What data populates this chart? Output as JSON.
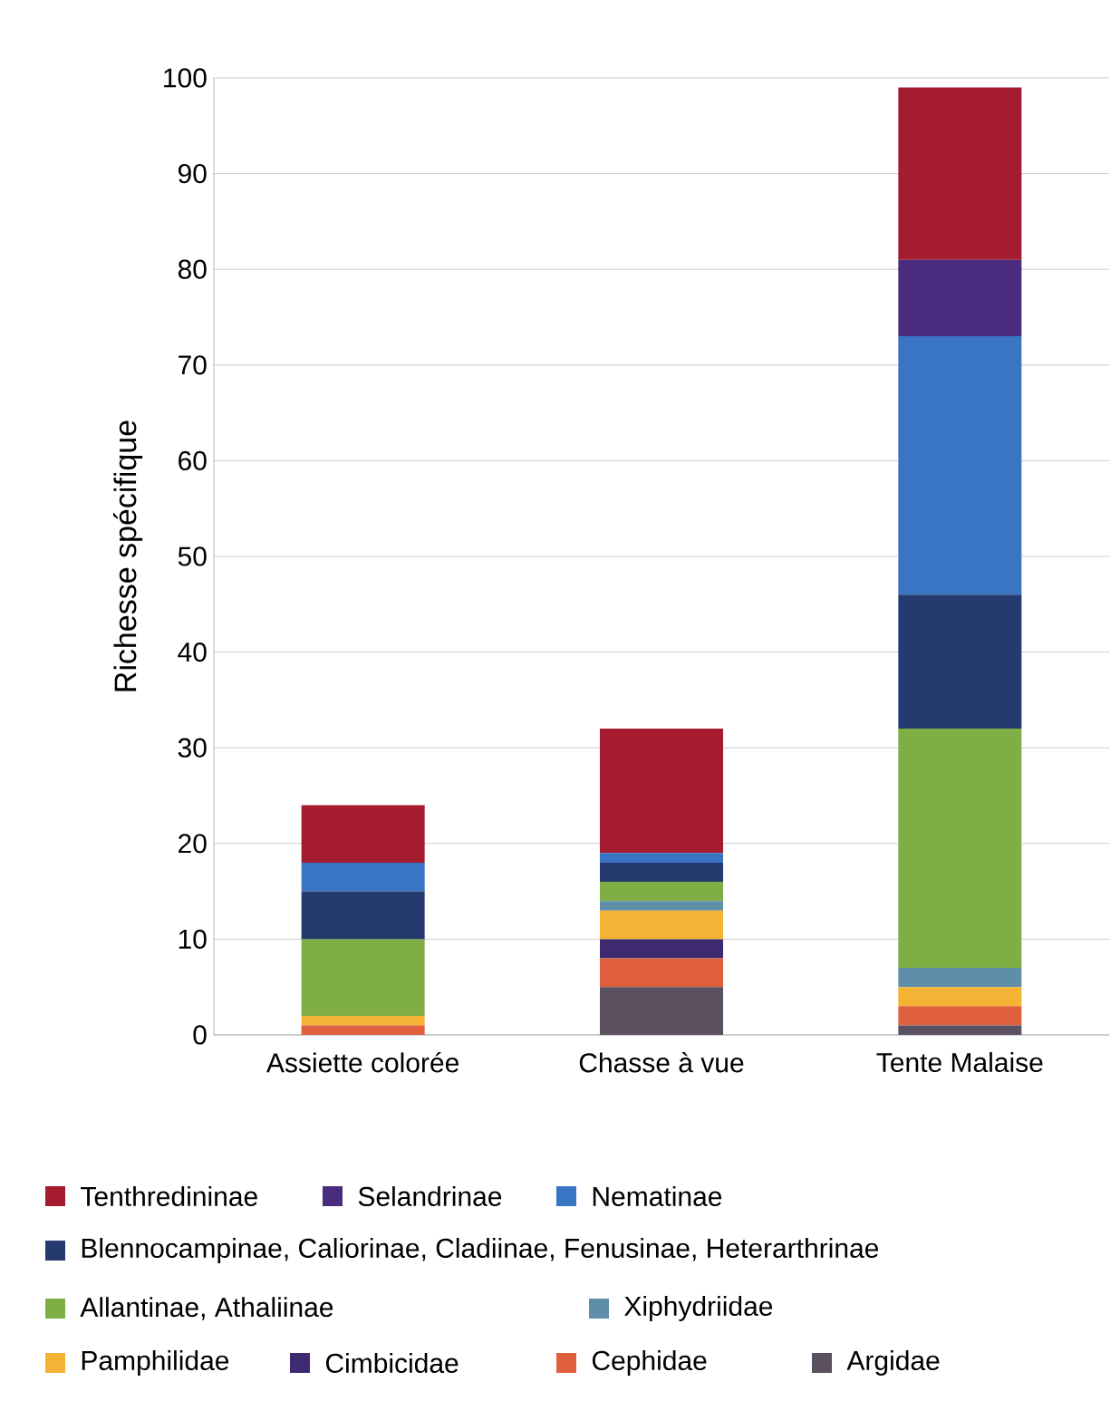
{
  "chart_data": {
    "type": "bar",
    "stacked": true,
    "ylabel": "Richesse spécifique",
    "categories": [
      "Assiette colorée",
      "Chasse à vue",
      "Tente Malaise"
    ],
    "ylim": [
      0,
      100
    ],
    "yticks": [
      0,
      10,
      20,
      30,
      40,
      50,
      60,
      70,
      80,
      90,
      100
    ],
    "grid": "y",
    "legend": "bottom",
    "series": [
      {
        "name": "Argidae",
        "color": "#5a5060",
        "values": [
          0,
          5,
          1
        ]
      },
      {
        "name": "Cephidae",
        "color": "#e0603e",
        "values": [
          1,
          3,
          2
        ]
      },
      {
        "name": "Cimbicidae",
        "color": "#3d2a70",
        "values": [
          0,
          2,
          0
        ]
      },
      {
        "name": "Pamphilidae",
        "color": "#f5b335",
        "values": [
          1,
          3,
          2
        ]
      },
      {
        "name": "Xiphydriidae",
        "color": "#5f8ea8",
        "values": [
          0,
          1,
          2
        ]
      },
      {
        "name": "Allantinae, Athaliinae",
        "color": "#7fae45",
        "values": [
          8,
          2,
          25
        ]
      },
      {
        "name": "Blennocampinae, Caliorinae, Cladiinae, Fenusinae, Heterarthrinae",
        "color": "#253a6e",
        "values": [
          5,
          2,
          14
        ]
      },
      {
        "name": "Nematinae",
        "color": "#3a75c4",
        "values": [
          3,
          1,
          27
        ]
      },
      {
        "name": "Selandrinae",
        "color": "#4a2c7e",
        "values": [
          0,
          0,
          8
        ]
      },
      {
        "name": "Tenthredininae",
        "color": "#a51c30",
        "values": [
          6,
          13,
          18
        ]
      }
    ]
  }
}
